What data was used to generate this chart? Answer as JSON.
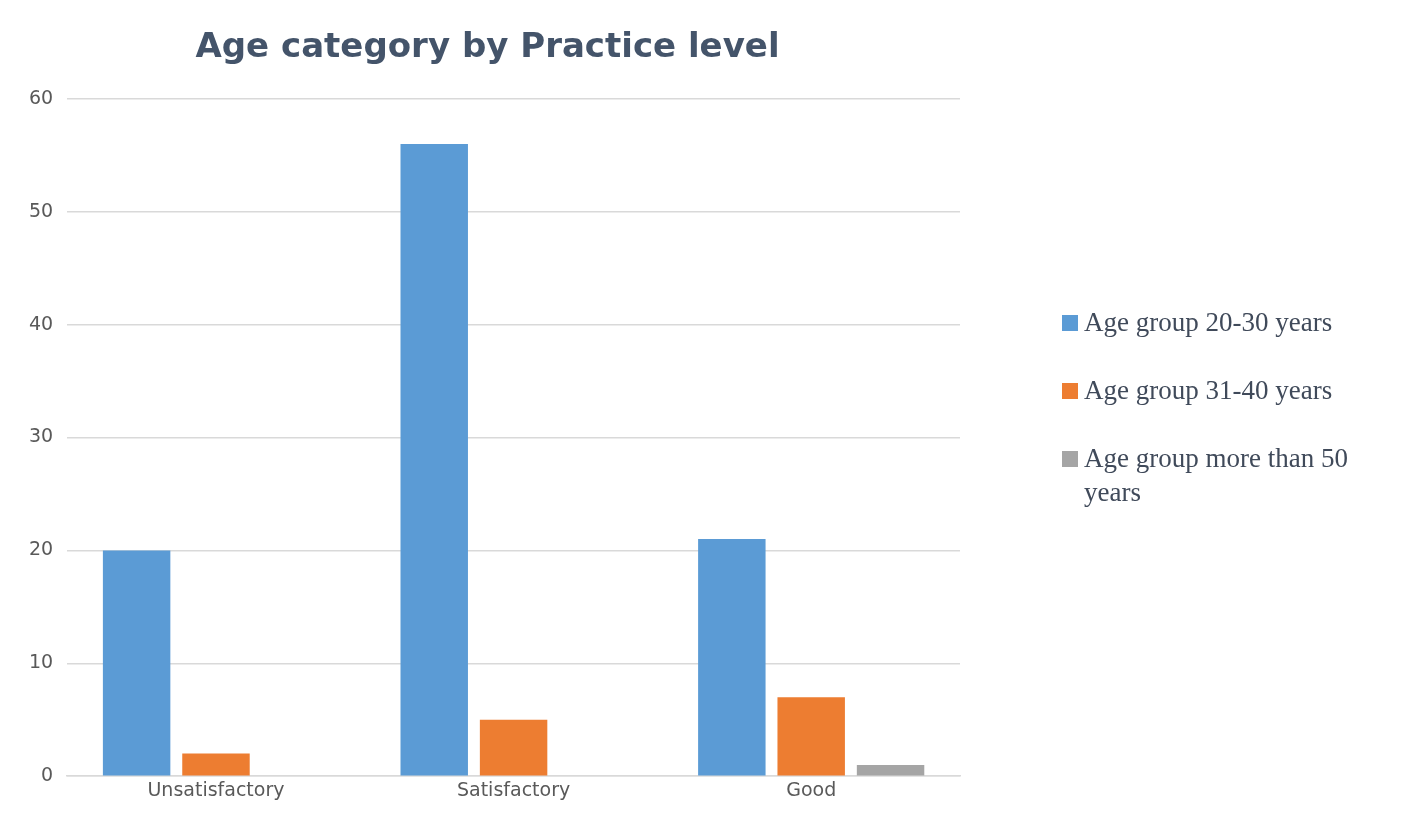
{
  "chart_data": {
    "type": "bar",
    "title": "Age category by Practice level",
    "categories": [
      "Unsatisfactory",
      "Satisfactory",
      "Good"
    ],
    "series": [
      {
        "name": "Age group 20-30 years",
        "color": "#5b9bd5",
        "values": [
          20,
          56,
          21
        ]
      },
      {
        "name": "Age group 31-40 years",
        "color": "#ed7d31",
        "values": [
          2,
          5,
          7
        ]
      },
      {
        "name": "Age group more than 50 years",
        "color": "#a5a5a5",
        "values": [
          0,
          0,
          1
        ]
      }
    ],
    "ylim": [
      0,
      60
    ],
    "yticks": [
      0,
      10,
      20,
      30,
      40,
      50,
      60
    ],
    "grid": "y",
    "legend": "right"
  }
}
